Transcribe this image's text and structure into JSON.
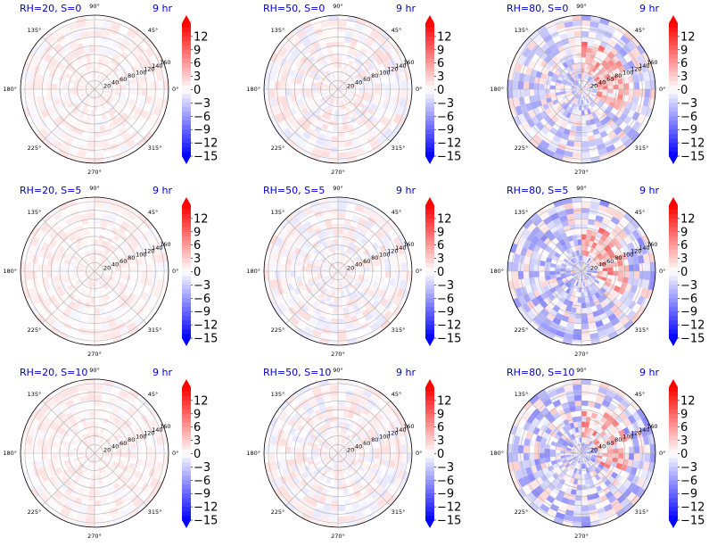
{
  "figure": {
    "colormap": "bwr",
    "colors": {
      "min": "#0000ff",
      "mid": "#ffffff",
      "max": "#ff0000",
      "title": "#0000cc"
    }
  },
  "chart_data": [
    {
      "type": "heatmap",
      "projection": "polar",
      "title": "RH=20, S=0",
      "time_label": "9 hr",
      "r_ticks": [
        20,
        40,
        60,
        80,
        100,
        120,
        140,
        160
      ],
      "theta_ticks": [
        "0°",
        "45°",
        "90°",
        "135°",
        "180°",
        "225°",
        "270°",
        "315°"
      ],
      "colorbar": {
        "ticks": [
          12,
          9,
          6,
          3,
          0,
          -3,
          -6,
          -9,
          -12,
          -15
        ],
        "range": [
          -15,
          15
        ],
        "extend": "both"
      },
      "field_mean": 0.5,
      "field_amplitude": 1.2,
      "field_warm_sector_deg": null
    },
    {
      "type": "heatmap",
      "projection": "polar",
      "title": "RH=50, S=0",
      "time_label": "9 hr",
      "r_ticks": [
        20,
        40,
        60,
        80,
        100,
        120,
        140,
        160
      ],
      "theta_ticks": [
        "0°",
        "45°",
        "90°",
        "135°",
        "180°",
        "225°",
        "270°",
        "315°"
      ],
      "colorbar": {
        "ticks": [
          12,
          9,
          6,
          3,
          0,
          -3,
          -6,
          -9,
          -12,
          -15
        ],
        "range": [
          -15,
          15
        ],
        "extend": "both"
      },
      "field_mean": 0.3,
      "field_amplitude": 1.8,
      "field_warm_sector_deg": null
    },
    {
      "type": "heatmap",
      "projection": "polar",
      "title": "RH=80, S=0",
      "time_label": "9 hr",
      "r_ticks": [
        20,
        40,
        60,
        80,
        100,
        120,
        140,
        160
      ],
      "theta_ticks": [
        "0°",
        "45°",
        "90°",
        "135°",
        "180°",
        "225°",
        "270°",
        "315°"
      ],
      "colorbar": {
        "ticks": [
          12,
          9,
          6,
          3,
          0,
          -3,
          -6,
          -9,
          -12,
          -15
        ],
        "range": [
          -15,
          15
        ],
        "extend": "both"
      },
      "field_mean": -1.5,
      "field_amplitude": 4.5,
      "field_warm_sector_deg": 30
    },
    {
      "type": "heatmap",
      "projection": "polar",
      "title": "RH=20, S=5",
      "time_label": "9 hr",
      "r_ticks": [
        20,
        40,
        60,
        80,
        100,
        120,
        140,
        160
      ],
      "theta_ticks": [
        "0°",
        "45°",
        "90°",
        "135°",
        "180°",
        "225°",
        "270°",
        "315°"
      ],
      "colorbar": {
        "ticks": [
          12,
          9,
          6,
          3,
          0,
          -3,
          -6,
          -9,
          -12,
          -15
        ],
        "range": [
          -15,
          15
        ],
        "extend": "both"
      },
      "field_mean": 0.5,
      "field_amplitude": 1.2,
      "field_warm_sector_deg": null
    },
    {
      "type": "heatmap",
      "projection": "polar",
      "title": "RH=50, S=5",
      "time_label": "9 hr",
      "r_ticks": [
        20,
        40,
        60,
        80,
        100,
        120,
        140,
        160
      ],
      "theta_ticks": [
        "0°",
        "45°",
        "90°",
        "135°",
        "180°",
        "225°",
        "270°",
        "315°"
      ],
      "colorbar": {
        "ticks": [
          12,
          9,
          6,
          3,
          0,
          -3,
          -6,
          -9,
          -12,
          -15
        ],
        "range": [
          -15,
          15
        ],
        "extend": "both"
      },
      "field_mean": 0.3,
      "field_amplitude": 1.8,
      "field_warm_sector_deg": null
    },
    {
      "type": "heatmap",
      "projection": "polar",
      "title": "RH=80, S=5",
      "time_label": "9 hr",
      "r_ticks": [
        20,
        40,
        60,
        80,
        100,
        120,
        140,
        160
      ],
      "theta_ticks": [
        "0°",
        "45°",
        "90°",
        "135°",
        "180°",
        "225°",
        "270°",
        "315°"
      ],
      "colorbar": {
        "ticks": [
          12,
          9,
          6,
          3,
          0,
          -3,
          -6,
          -9,
          -12,
          -15
        ],
        "range": [
          -15,
          15
        ],
        "extend": "both"
      },
      "field_mean": -2.0,
      "field_amplitude": 5.0,
      "field_warm_sector_deg": 30
    },
    {
      "type": "heatmap",
      "projection": "polar",
      "title": "RH=20, S=10",
      "time_label": "9 hr",
      "r_ticks": [
        20,
        40,
        60,
        80,
        100,
        120,
        140,
        160
      ],
      "theta_ticks": [
        "0°",
        "45°",
        "90°",
        "135°",
        "180°",
        "225°",
        "270°",
        "315°"
      ],
      "colorbar": {
        "ticks": [
          12,
          9,
          6,
          3,
          0,
          -3,
          -6,
          -9,
          -12,
          -15
        ],
        "range": [
          -15,
          15
        ],
        "extend": "both"
      },
      "field_mean": 0.5,
      "field_amplitude": 1.2,
      "field_warm_sector_deg": null
    },
    {
      "type": "heatmap",
      "projection": "polar",
      "title": "RH=50, S=10",
      "time_label": "9 hr",
      "r_ticks": [
        20,
        40,
        60,
        80,
        100,
        120,
        140,
        160
      ],
      "theta_ticks": [
        "0°",
        "45°",
        "90°",
        "135°",
        "180°",
        "225°",
        "270°",
        "315°"
      ],
      "colorbar": {
        "ticks": [
          12,
          9,
          6,
          3,
          0,
          -3,
          -6,
          -9,
          -12,
          -15
        ],
        "range": [
          -15,
          15
        ],
        "extend": "both"
      },
      "field_mean": 0.3,
      "field_amplitude": 1.8,
      "field_warm_sector_deg": null
    },
    {
      "type": "heatmap",
      "projection": "polar",
      "title": "RH=80, S=10",
      "time_label": "9 hr",
      "r_ticks": [
        20,
        40,
        60,
        80,
        100,
        120,
        140,
        160
      ],
      "theta_ticks": [
        "0°",
        "45°",
        "90°",
        "135°",
        "180°",
        "225°",
        "270°",
        "315°"
      ],
      "colorbar": {
        "ticks": [
          12,
          9,
          6,
          3,
          0,
          -3,
          -6,
          -9,
          -12,
          -15
        ],
        "range": [
          -15,
          15
        ],
        "extend": "both"
      },
      "field_mean": -2.0,
      "field_amplitude": 5.0,
      "field_warm_sector_deg": 30
    }
  ]
}
